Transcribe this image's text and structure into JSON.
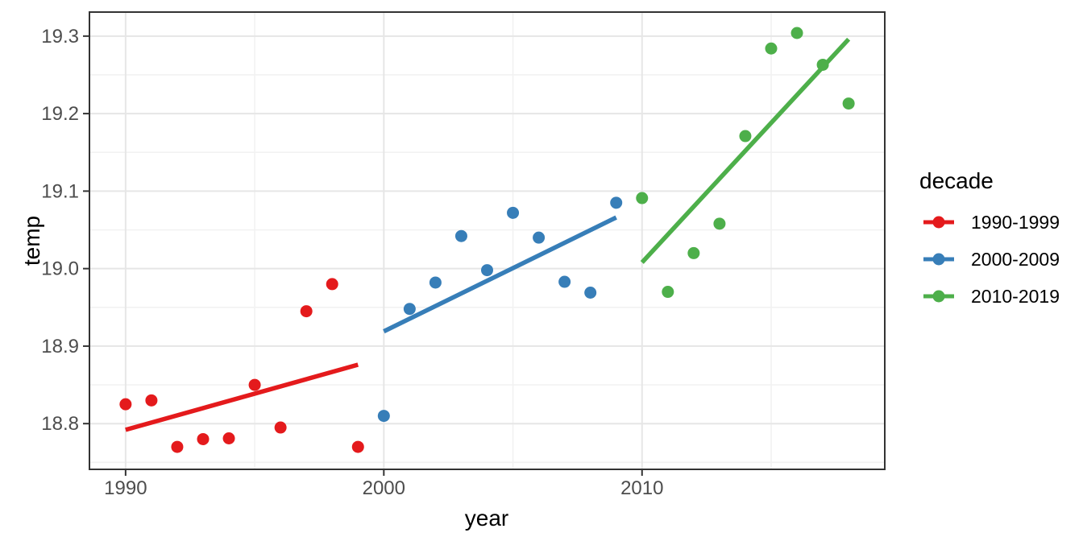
{
  "chart_data": {
    "type": "scatter",
    "title": "",
    "xlabel": "year",
    "ylabel": "temp",
    "xlim": [
      1988.6,
      2019.4
    ],
    "ylim": [
      18.741,
      19.331
    ],
    "grid": true,
    "x_axis": {
      "tick_values": [
        1990,
        2000,
        2010
      ],
      "tick_labels": [
        "1990",
        "2000",
        "2010"
      ],
      "minor_breaks": [
        1995,
        2005,
        2015
      ]
    },
    "y_axis": {
      "tick_values": [
        18.8,
        18.9,
        19.0,
        19.1,
        19.2,
        19.3
      ],
      "tick_labels": [
        "18.8",
        "18.9",
        "19.0",
        "19.1",
        "19.2",
        "19.3"
      ],
      "minor_breaks": [
        18.75,
        18.85,
        18.95,
        19.05,
        19.15,
        19.25
      ]
    },
    "legend": {
      "title": "decade",
      "position": "right",
      "entries": [
        "1990-1999",
        "2000-2009",
        "2010-2019"
      ]
    },
    "series": [
      {
        "name": "1990-1999",
        "color": "#E41A1C",
        "points": [
          [
            1990,
            18.825
          ],
          [
            1991,
            18.83
          ],
          [
            1992,
            18.77
          ],
          [
            1993,
            18.78
          ],
          [
            1994,
            18.781
          ],
          [
            1995,
            18.85
          ],
          [
            1996,
            18.795
          ],
          [
            1997,
            18.945
          ],
          [
            1998,
            18.98
          ],
          [
            1999,
            18.77
          ]
        ],
        "trend": [
          [
            1990,
            18.792
          ],
          [
            1999,
            18.876
          ]
        ]
      },
      {
        "name": "2000-2009",
        "color": "#377EB8",
        "points": [
          [
            2000,
            18.81
          ],
          [
            2001,
            18.948
          ],
          [
            2002,
            18.982
          ],
          [
            2003,
            19.042
          ],
          [
            2004,
            18.998
          ],
          [
            2005,
            19.072
          ],
          [
            2006,
            19.04
          ],
          [
            2007,
            18.983
          ],
          [
            2008,
            18.969
          ],
          [
            2009,
            19.085
          ]
        ],
        "trend": [
          [
            2000,
            18.919
          ],
          [
            2009,
            19.066
          ]
        ]
      },
      {
        "name": "2010-2019",
        "color": "#4DAF4A",
        "points": [
          [
            2010,
            19.091
          ],
          [
            2011,
            18.97
          ],
          [
            2012,
            19.02
          ],
          [
            2013,
            19.058
          ],
          [
            2014,
            19.171
          ],
          [
            2015,
            19.284
          ],
          [
            2016,
            19.304
          ],
          [
            2017,
            19.263
          ],
          [
            2018,
            19.213
          ]
        ],
        "trend": [
          [
            2010,
            19.008
          ],
          [
            2018,
            19.296
          ]
        ]
      }
    ],
    "style": {
      "background": "#FFFFFF",
      "grid_major_color": "#E6E6E6",
      "grid_minor_color": "#F2F2F2",
      "panel_border_color": "#333333",
      "tick_color": "#333333",
      "tick_label_color": "#4D4D4D",
      "title_color": "#000000",
      "point_radius": 7.5,
      "trend_width": 5.5
    }
  }
}
